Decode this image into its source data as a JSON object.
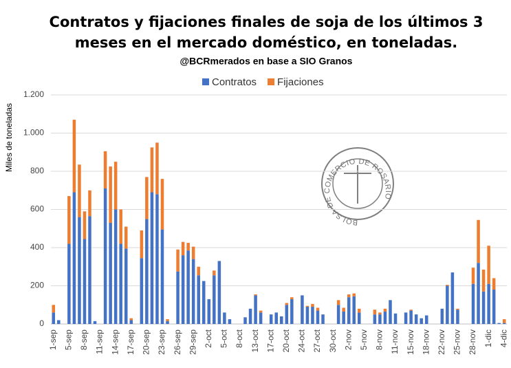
{
  "chart_data": {
    "type": "stacked_bar",
    "title": [
      "Contratos y fijaciones finales de soja de los últimos 3",
      "meses en el mercado doméstico, en toneladas."
    ],
    "subtitle": "@BCRmerados en base a SIO Granos",
    "y_label": "Miles de toneladas",
    "watermark": "BOLSA DE COMERCIO DE ROSARIO",
    "categories": [
      "1-sep",
      null,
      null,
      "5-sep",
      null,
      null,
      "8-sep",
      null,
      null,
      "11-sep",
      null,
      null,
      "14-sep",
      null,
      null,
      "17-sep",
      null,
      null,
      "20-sep",
      null,
      null,
      "23-sep",
      null,
      null,
      "26-sep",
      null,
      null,
      "29-sep",
      null,
      null,
      "2-oct",
      null,
      null,
      "5-oct",
      null,
      null,
      "8-oct",
      null,
      null,
      "13-oct",
      null,
      null,
      "17-oct",
      null,
      null,
      "20-oct",
      null,
      null,
      "24-oct",
      null,
      null,
      "27-oct",
      null,
      null,
      "30-oct",
      null,
      null,
      "2-nov",
      null,
      null,
      "5-nov",
      null,
      null,
      "8-nov",
      null,
      null,
      "11-nov",
      null,
      null,
      "15-nov",
      null,
      null,
      "18-nov",
      null,
      null,
      "22-nov",
      null,
      null,
      "25-nov",
      null,
      null,
      "28-nov",
      null,
      null,
      "1-dic",
      null,
      null,
      "4-dic"
    ],
    "series": [
      {
        "name": "Contratos",
        "color": "#4472c4",
        "values": [
          60,
          20,
          0,
          420,
          690,
          560,
          445,
          565,
          15,
          0,
          710,
          530,
          600,
          420,
          395,
          20,
          0,
          345,
          550,
          690,
          680,
          495,
          15,
          0,
          275,
          360,
          385,
          340,
          255,
          225,
          130,
          255,
          330,
          60,
          25,
          0,
          0,
          35,
          80,
          150,
          60,
          0,
          50,
          60,
          40,
          100,
          130,
          0,
          150,
          90,
          90,
          70,
          50,
          0,
          0,
          100,
          65,
          140,
          145,
          60,
          0,
          0,
          50,
          50,
          65,
          125,
          55,
          0,
          60,
          70,
          50,
          30,
          45,
          0,
          0,
          80,
          200,
          270,
          75,
          0,
          0,
          210,
          320,
          170,
          210,
          180,
          5,
          5
        ]
      },
      {
        "name": "Fijaciones",
        "color": "#ed7d31",
        "values": [
          40,
          0,
          0,
          250,
          380,
          275,
          145,
          135,
          0,
          0,
          195,
          295,
          250,
          180,
          115,
          10,
          0,
          145,
          220,
          235,
          270,
          265,
          10,
          0,
          115,
          70,
          40,
          65,
          45,
          0,
          0,
          25,
          0,
          0,
          0,
          0,
          0,
          0,
          0,
          5,
          10,
          0,
          0,
          0,
          0,
          10,
          10,
          0,
          0,
          5,
          15,
          15,
          0,
          0,
          0,
          25,
          20,
          15,
          15,
          20,
          0,
          0,
          25,
          10,
          15,
          0,
          0,
          0,
          0,
          5,
          0,
          0,
          0,
          0,
          0,
          0,
          5,
          0,
          5,
          0,
          0,
          85,
          225,
          115,
          200,
          60,
          0,
          20
        ]
      }
    ],
    "ylim": [
      0,
      1200
    ],
    "yticks": [
      0,
      200,
      400,
      600,
      800,
      {
        "value": 1000,
        "label": "1.000"
      },
      {
        "value": 1200,
        "label": "1.200"
      }
    ],
    "grid": true,
    "legend": "top"
  }
}
